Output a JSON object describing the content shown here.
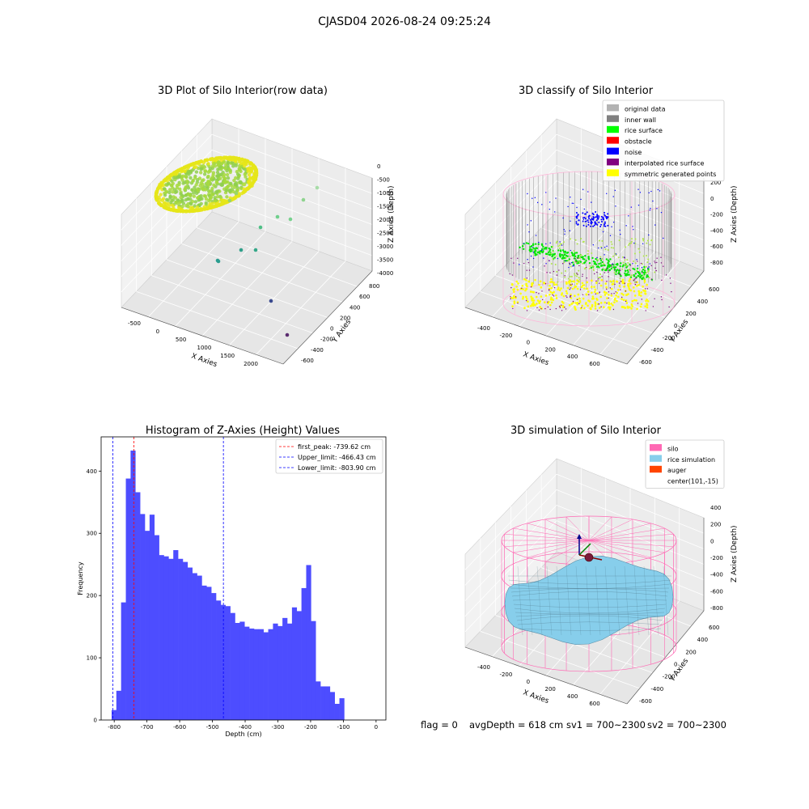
{
  "figure_title": "CJASD04 2026-08-24 09:25:24",
  "status": {
    "flag": "flag = 0",
    "avg_depth": "avgDepth = 618 cm",
    "sv1": "sv1 = 700~2300",
    "sv2": "sv2 = 700~2300"
  },
  "colors": {
    "raw_yellow": "#e6e619",
    "raw_green": "#66cc66",
    "raw_teal": "#2a9d8f",
    "raw_purple": "#5b2c6f",
    "histogram_bar": "#4d4dff",
    "first_peak_line": "#ff0000",
    "limit_line": "#0000ff",
    "silo_wire": "#ff69b4",
    "rice_surface": "#87ceeb",
    "inner_wall": "#808080"
  },
  "chart_data": [
    {
      "type": "scatter",
      "panel": "raw",
      "title": "3D Plot of Silo Interior(row data)",
      "xlabel": "X Axies",
      "ylabel": "Y Axies",
      "zlabel": "Z Axies (Depth)",
      "x_ticks": [
        "-500",
        "0",
        "500",
        "1000",
        "1500",
        "2000"
      ],
      "y_ticks": [
        "-600",
        "-400",
        "-200",
        "0",
        "200",
        "400",
        "600",
        "800"
      ],
      "z_ticks": [
        "0",
        "-500",
        "-1000",
        "-1500",
        "-2000",
        "-2500",
        "-3000",
        "-3500",
        "-4000"
      ]
    },
    {
      "type": "scatter",
      "panel": "classify",
      "title": "3D classify of Silo Interior",
      "xlabel": "X Axies",
      "ylabel": "Y Axies",
      "zlabel": "Z Axies (Depth)",
      "x_ticks": [
        "-400",
        "-200",
        "0",
        "200",
        "400",
        "600"
      ],
      "y_ticks": [
        "-600",
        "-400",
        "-200",
        "0",
        "200",
        "400",
        "600"
      ],
      "z_ticks": [
        "200",
        "0",
        "-200",
        "-400",
        "-600",
        "-800"
      ],
      "legend_position": "top-right",
      "legend": [
        {
          "label": "original data",
          "color": "#b3b3b3"
        },
        {
          "label": "inner wall",
          "color": "#808080"
        },
        {
          "label": "rice surface",
          "color": "#00ff00"
        },
        {
          "label": "obstacle",
          "color": "#ff0000"
        },
        {
          "label": "noise",
          "color": "#0000ff"
        },
        {
          "label": "interpolated rice surface",
          "color": "#800080"
        },
        {
          "label": "symmetric generated points",
          "color": "#ffff00"
        }
      ]
    },
    {
      "type": "bar",
      "panel": "histogram",
      "title": "Histogram of Z-Axies (Height) Values",
      "xlabel": "Depth (cm)",
      "ylabel": "Frequency",
      "xlim": [
        -840,
        30
      ],
      "ylim": [
        0,
        455
      ],
      "x_ticks": [
        -800,
        -700,
        -600,
        -500,
        -400,
        -300,
        -200,
        -100,
        0
      ],
      "y_ticks": [
        0,
        100,
        200,
        300,
        400
      ],
      "bin_start": -808,
      "bin_width": 14.5,
      "values": [
        16,
        47,
        189,
        388,
        433,
        366,
        331,
        304,
        330,
        297,
        265,
        263,
        259,
        273,
        259,
        254,
        245,
        236,
        232,
        216,
        214,
        204,
        192,
        185,
        183,
        172,
        156,
        158,
        150,
        147,
        146,
        146,
        141,
        146,
        155,
        151,
        164,
        155,
        181,
        175,
        212,
        249,
        159,
        62,
        54,
        54,
        45,
        26,
        35
      ],
      "lines": [
        {
          "label": "first_peak: -739.62 cm",
          "x": -739.62,
          "color": "#ff0000"
        },
        {
          "label": "Upper_limit: -466.43 cm",
          "x": -466.43,
          "color": "#0000ff"
        },
        {
          "label": "Lower_limit: -803.90 cm",
          "x": -803.9,
          "color": "#0000ff"
        }
      ],
      "legend_position": "top-right"
    },
    {
      "type": "surface",
      "panel": "simulation",
      "title": "3D simulation of Silo Interior",
      "xlabel": "X Axies",
      "ylabel": "Y Axies",
      "zlabel": "Z Axies (Depth)",
      "x_ticks": [
        "-400",
        "-200",
        "0",
        "200",
        "400",
        "600"
      ],
      "y_ticks": [
        "-600",
        "-400",
        "-200",
        "0",
        "200",
        "400",
        "600"
      ],
      "z_ticks": [
        "400",
        "200",
        "0",
        "-200",
        "-400",
        "-600",
        "-800"
      ],
      "legend_position": "top-right",
      "legend": [
        {
          "label": "silo",
          "color": "#ff69b4"
        },
        {
          "label": "rice simulation",
          "color": "#87ceeb"
        },
        {
          "label": "auger",
          "color": "#ff4500"
        },
        {
          "label": "center(101,-15)",
          "color": ""
        }
      ]
    }
  ]
}
